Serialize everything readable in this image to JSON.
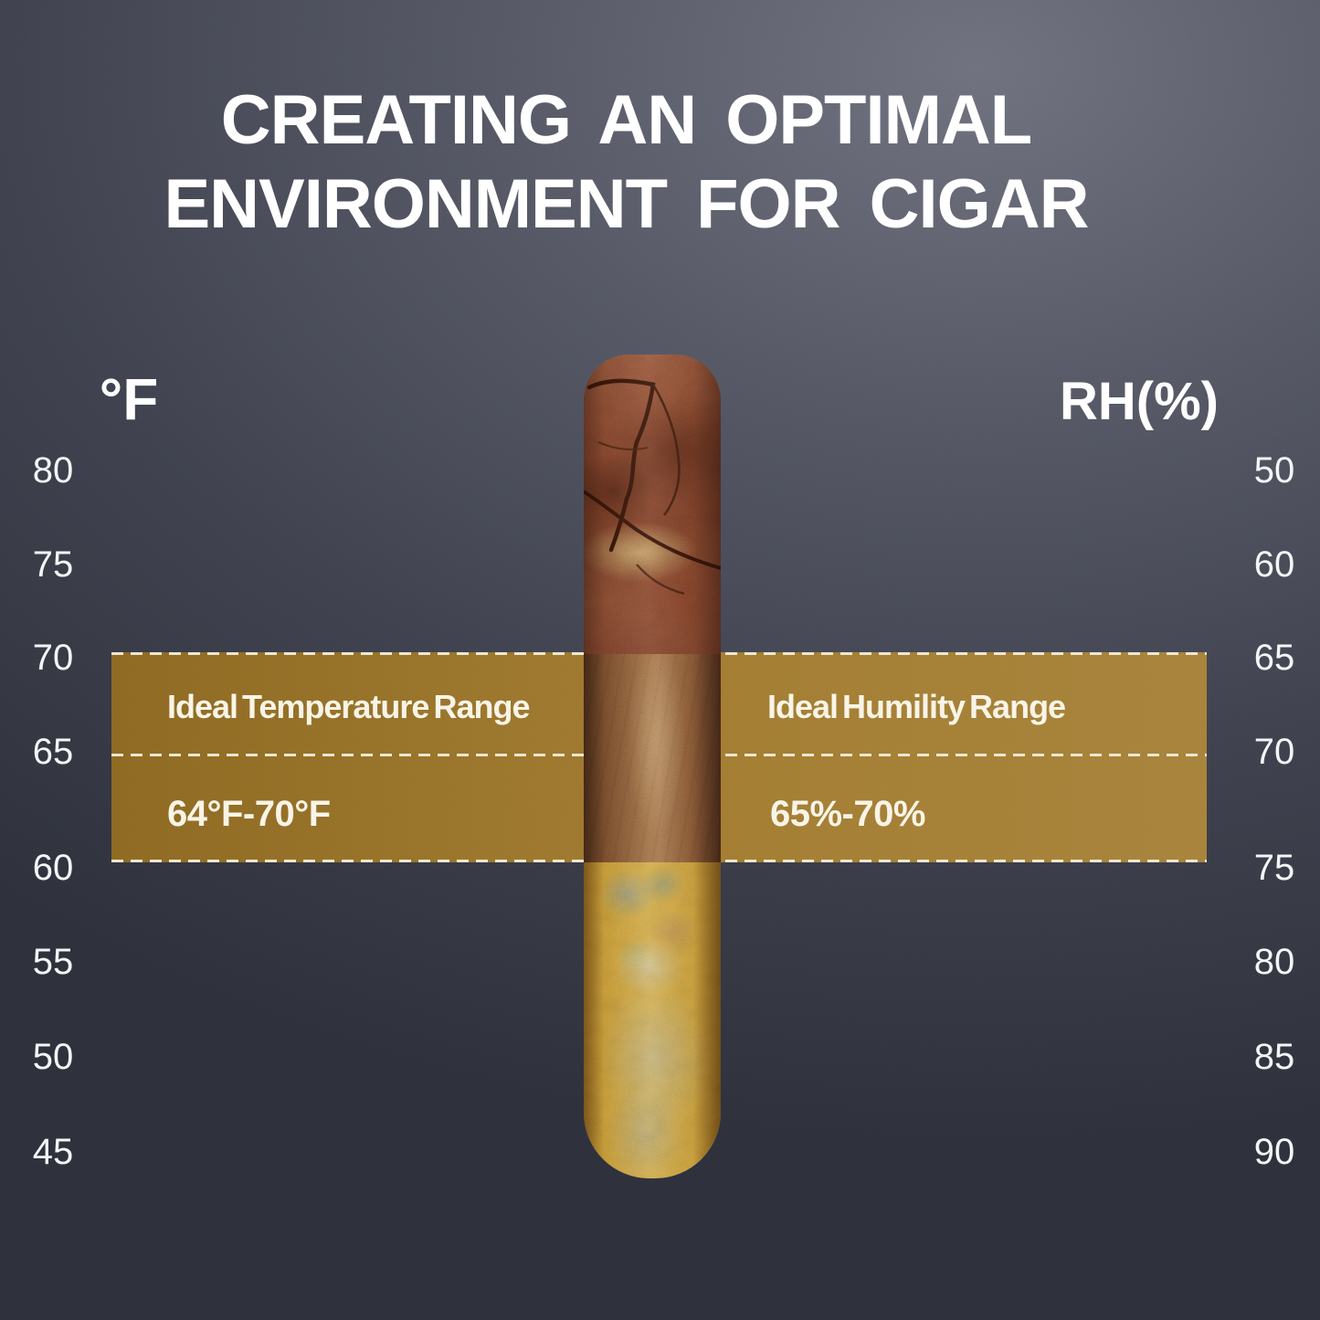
{
  "title": {
    "line1": "CREATING AN OPTIMAL",
    "line2": "ENVIRONMENT FOR CIGAR"
  },
  "left_axis": {
    "unit": "°F",
    "ticks": [
      "80",
      "75",
      "70",
      "65",
      "60",
      "55",
      "50",
      "45"
    ]
  },
  "right_axis": {
    "unit": "RH(%)",
    "ticks": [
      "50",
      "60",
      "65",
      "70",
      "75",
      "80",
      "85",
      "90"
    ]
  },
  "ranges": {
    "temperature": {
      "label": "Ideal Temperature Range",
      "value": "64°F-70°F"
    },
    "humidity": {
      "label": "Ideal Humility Range",
      "value": "65%-70%"
    }
  },
  "cigar": {
    "top_state": "dry-cracked-cigar-wrapper",
    "middle_state": "ideal-smooth-cigar-wrapper",
    "bottom_state": "moldy-overhumidified-cigar-wrapper"
  },
  "colors": {
    "band_gold": "#9d7526",
    "dash_cream": "#f0e7d0",
    "text_white": "#ffffff",
    "bg_light": "#6f727e",
    "bg_dark": "#2e313b"
  },
  "chart_data": {
    "type": "area",
    "title": "CREATING AN OPTIMAL ENVIRONMENT FOR CIGAR",
    "left_axis": {
      "label": "°F",
      "ticks": [
        80,
        75,
        70,
        65,
        60,
        55,
        50,
        45
      ],
      "order": "top-to-bottom",
      "range_shown": [
        45,
        80
      ]
    },
    "right_axis": {
      "label": "RH(%)",
      "ticks": [
        50,
        60,
        65,
        70,
        75,
        80,
        85,
        90
      ],
      "order": "top-to-bottom",
      "range_shown": [
        50,
        90
      ]
    },
    "highlight_band": {
      "temperature_label": "Ideal Temperature Range",
      "temperature_range_f": [
        64,
        70
      ],
      "temperature_range_text": "64°F-70°F",
      "humidity_label": "Ideal Humility Range",
      "humidity_range_pct": [
        65,
        70
      ],
      "humidity_range_text": "65%-70%",
      "band_top_at_left_axis_f": 70,
      "band_divider_at_left_axis_f": 65,
      "band_bottom_at_left_axis_f": 60,
      "band_top_at_right_axis_rh": 65,
      "band_divider_at_right_axis_rh": 70,
      "band_bottom_at_right_axis_rh": 75,
      "border_style": "white-dashed"
    },
    "center_illustration": "vertical cigar: dry cracked top, ideal smooth middle, moldy bottom",
    "grid": false,
    "legend_position": "none"
  }
}
